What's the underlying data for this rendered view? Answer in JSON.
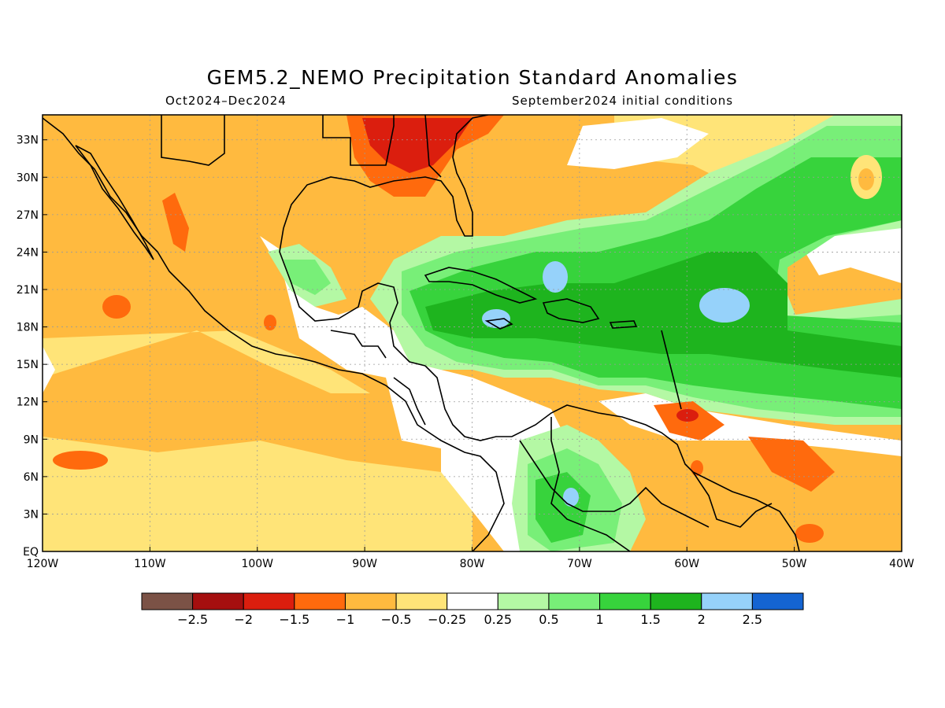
{
  "title": "GEM5.2_NEMO Precipitation Standard Anomalies",
  "period": "Oct2024–Dec2024",
  "init": "September2024 initial conditions",
  "axes": {
    "lon_ticks": [
      "120W",
      "110W",
      "100W",
      "90W",
      "80W",
      "70W",
      "60W",
      "50W",
      "40W"
    ],
    "lat_ticks": [
      "EQ",
      "3N",
      "6N",
      "9N",
      "12N",
      "15N",
      "18N",
      "21N",
      "24N",
      "27N",
      "30N",
      "33N"
    ],
    "lon_range": [
      -120,
      -40
    ],
    "lat_range": [
      0,
      35
    ]
  },
  "colorbar": {
    "colors": [
      "#7b5246",
      "#a50f0f",
      "#db1e0e",
      "#ff6a0d",
      "#ffba3f",
      "#ffe478",
      "#ffffff",
      "#b4f8a4",
      "#78ef78",
      "#37d33c",
      "#1eb41e",
      "#96d2fa",
      "#1464d2"
    ],
    "labels": [
      "−2.5",
      "−2",
      "−1.5",
      "−1",
      "−0.5",
      "−0.25",
      "0.25",
      "0.5",
      "1",
      "1.5",
      "2",
      "2.5"
    ]
  },
  "legend_colors": {
    "ocean_base": "#ffba3f",
    "coast": "#000000"
  }
}
